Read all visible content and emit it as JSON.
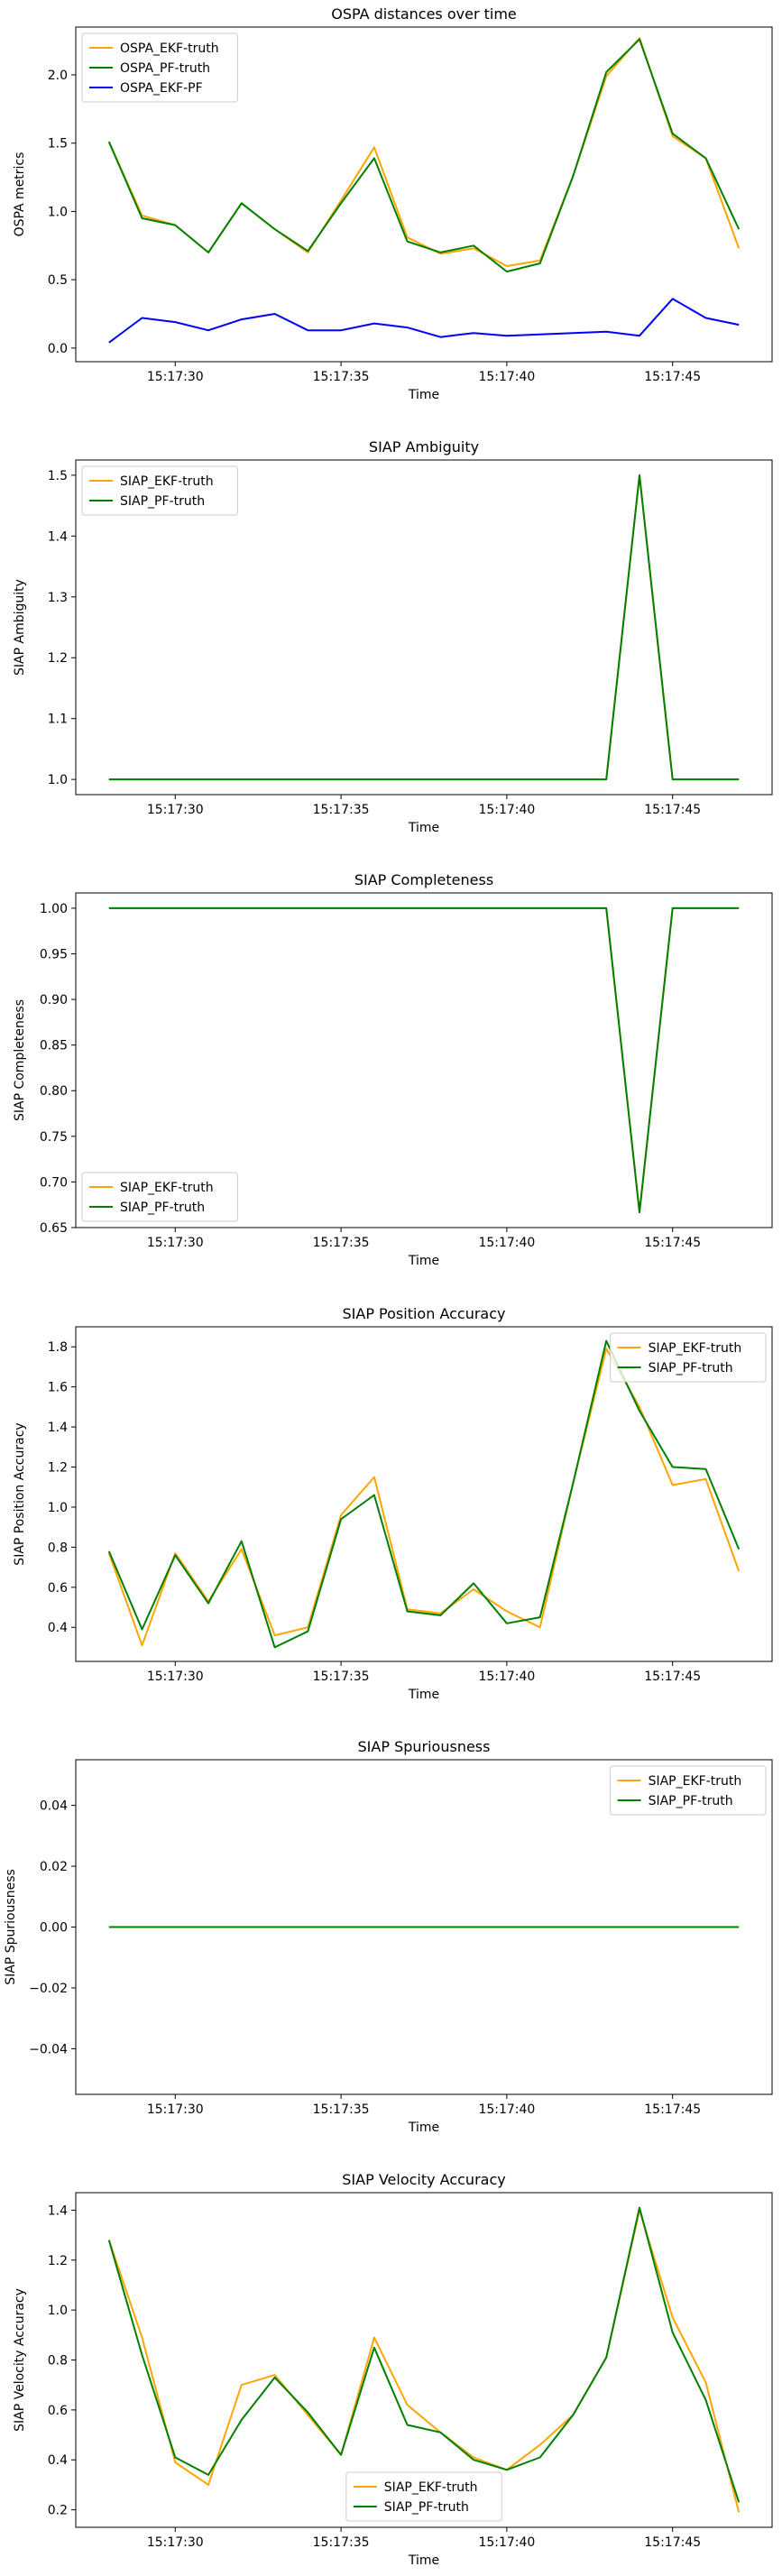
{
  "colors": {
    "orange": "#ffa500",
    "green": "#008000",
    "blue": "#0000ff"
  },
  "x_ticks": [
    "15:17:30",
    "15:17:35",
    "15:17:40",
    "15:17:45"
  ],
  "time_values": [
    "15:17:28",
    "15:17:29",
    "15:17:30",
    "15:17:31",
    "15:17:32",
    "15:17:33",
    "15:17:34",
    "15:17:35",
    "15:17:36",
    "15:17:37",
    "15:17:38",
    "15:17:39",
    "15:17:40",
    "15:17:41",
    "15:17:42",
    "15:17:43",
    "15:17:44",
    "15:17:45",
    "15:17:46",
    "15:17:47"
  ],
  "chart_data": [
    {
      "type": "line",
      "title": "OSPA distances over time",
      "xlabel": "Time",
      "ylabel": "OSPA metrics",
      "xlim": [
        "15:17:27",
        "15:17:48"
      ],
      "ylim": [
        -0.1,
        2.35
      ],
      "yticks": [
        0.0,
        0.5,
        1.0,
        1.5,
        2.0
      ],
      "ytick_labels": [
        "0.0",
        "0.5",
        "1.0",
        "1.5",
        "2.0"
      ],
      "legend_position": "upper-left",
      "grid": false,
      "series": [
        {
          "name": "OSPA_EKF-truth",
          "color": "orange",
          "values": [
            1.51,
            0.97,
            0.9,
            0.7,
            1.06,
            0.87,
            0.7,
            1.08,
            1.47,
            0.81,
            0.69,
            0.73,
            0.6,
            0.64,
            1.26,
            1.99,
            2.27,
            1.55,
            1.39,
            0.73
          ]
        },
        {
          "name": "OSPA_PF-truth",
          "color": "green",
          "values": [
            1.51,
            0.95,
            0.9,
            0.7,
            1.06,
            0.87,
            0.71,
            1.06,
            1.39,
            0.78,
            0.7,
            0.75,
            0.56,
            0.62,
            1.26,
            2.02,
            2.26,
            1.57,
            1.39,
            0.87
          ]
        },
        {
          "name": "OSPA_EKF-PF",
          "color": "blue",
          "values": [
            0.04,
            0.22,
            0.19,
            0.13,
            0.21,
            0.25,
            0.13,
            0.13,
            0.18,
            0.15,
            0.08,
            0.11,
            0.09,
            0.1,
            0.11,
            0.12,
            0.09,
            0.36,
            0.22,
            0.17
          ]
        }
      ]
    },
    {
      "type": "line",
      "title": "SIAP Ambiguity",
      "xlabel": "Time",
      "ylabel": "SIAP Ambiguity",
      "xlim": [
        "15:17:27",
        "15:17:48"
      ],
      "ylim": [
        0.975,
        1.525
      ],
      "yticks": [
        1.0,
        1.1,
        1.2,
        1.3,
        1.4,
        1.5
      ],
      "ytick_labels": [
        "1.0",
        "1.1",
        "1.2",
        "1.3",
        "1.4",
        "1.5"
      ],
      "legend_position": "upper-left",
      "grid": false,
      "series": [
        {
          "name": "SIAP_EKF-truth",
          "color": "orange",
          "values": [
            1.0,
            1.0,
            1.0,
            1.0,
            1.0,
            1.0,
            1.0,
            1.0,
            1.0,
            1.0,
            1.0,
            1.0,
            1.0,
            1.0,
            1.0,
            1.0,
            1.5,
            1.0,
            1.0,
            1.0
          ]
        },
        {
          "name": "SIAP_PF-truth",
          "color": "green",
          "values": [
            1.0,
            1.0,
            1.0,
            1.0,
            1.0,
            1.0,
            1.0,
            1.0,
            1.0,
            1.0,
            1.0,
            1.0,
            1.0,
            1.0,
            1.0,
            1.0,
            1.5,
            1.0,
            1.0,
            1.0
          ]
        }
      ]
    },
    {
      "type": "line",
      "title": "SIAP Completeness",
      "xlabel": "Time",
      "ylabel": "SIAP Completeness",
      "xlim": [
        "15:17:27",
        "15:17:48"
      ],
      "ylim": [
        0.65,
        1.0167
      ],
      "yticks": [
        0.65,
        0.7,
        0.75,
        0.8,
        0.85,
        0.9,
        0.95,
        1.0
      ],
      "ytick_labels": [
        "0.65",
        "0.70",
        "0.75",
        "0.80",
        "0.85",
        "0.90",
        "0.95",
        "1.00"
      ],
      "legend_position": "lower-left",
      "grid": false,
      "series": [
        {
          "name": "SIAP_EKF-truth",
          "color": "orange",
          "values": [
            1.0,
            1.0,
            1.0,
            1.0,
            1.0,
            1.0,
            1.0,
            1.0,
            1.0,
            1.0,
            1.0,
            1.0,
            1.0,
            1.0,
            1.0,
            1.0,
            0.6667,
            1.0,
            1.0,
            1.0
          ]
        },
        {
          "name": "SIAP_PF-truth",
          "color": "green",
          "values": [
            1.0,
            1.0,
            1.0,
            1.0,
            1.0,
            1.0,
            1.0,
            1.0,
            1.0,
            1.0,
            1.0,
            1.0,
            1.0,
            1.0,
            1.0,
            1.0,
            0.6667,
            1.0,
            1.0,
            1.0
          ]
        }
      ]
    },
    {
      "type": "line",
      "title": "SIAP Position Accuracy",
      "xlabel": "Time",
      "ylabel": "SIAP Position Accuracy",
      "xlim": [
        "15:17:27",
        "15:17:48"
      ],
      "ylim": [
        0.23,
        1.9
      ],
      "yticks": [
        0.4,
        0.6,
        0.8,
        1.0,
        1.2,
        1.4,
        1.6,
        1.8
      ],
      "ytick_labels": [
        "0.4",
        "0.6",
        "0.8",
        "1.0",
        "1.2",
        "1.4",
        "1.6",
        "1.8"
      ],
      "legend_position": "upper-right",
      "grid": false,
      "series": [
        {
          "name": "SIAP_EKF-truth",
          "color": "orange",
          "values": [
            0.77,
            0.31,
            0.77,
            0.53,
            0.79,
            0.36,
            0.4,
            0.96,
            1.15,
            0.49,
            0.47,
            0.59,
            0.48,
            0.4,
            1.12,
            1.79,
            1.5,
            1.11,
            1.14,
            0.68
          ]
        },
        {
          "name": "SIAP_PF-truth",
          "color": "green",
          "values": [
            0.78,
            0.39,
            0.76,
            0.52,
            0.83,
            0.3,
            0.38,
            0.94,
            1.06,
            0.48,
            0.46,
            0.62,
            0.42,
            0.45,
            1.12,
            1.83,
            1.48,
            1.2,
            1.19,
            0.79
          ]
        }
      ]
    },
    {
      "type": "line",
      "title": "SIAP Spuriousness",
      "xlabel": "Time",
      "ylabel": "SIAP Spuriousness",
      "xlim": [
        "15:17:27",
        "15:17:48"
      ],
      "ylim": [
        -0.055,
        0.055
      ],
      "yticks": [
        -0.04,
        -0.02,
        0.0,
        0.02,
        0.04
      ],
      "ytick_labels": [
        "−0.04",
        "−0.02",
        "0.00",
        "0.02",
        "0.04"
      ],
      "legend_position": "upper-right",
      "grid": false,
      "series": [
        {
          "name": "SIAP_EKF-truth",
          "color": "orange",
          "values": [
            0,
            0,
            0,
            0,
            0,
            0,
            0,
            0,
            0,
            0,
            0,
            0,
            0,
            0,
            0,
            0,
            0,
            0,
            0,
            0
          ]
        },
        {
          "name": "SIAP_PF-truth",
          "color": "green",
          "values": [
            0,
            0,
            0,
            0,
            0,
            0,
            0,
            0,
            0,
            0,
            0,
            0,
            0,
            0,
            0,
            0,
            0,
            0,
            0,
            0
          ]
        }
      ]
    },
    {
      "type": "line",
      "title": "SIAP Velocity Accuracy",
      "xlabel": "Time",
      "ylabel": "SIAP Velocity Accuracy",
      "xlim": [
        "15:17:27",
        "15:17:48"
      ],
      "ylim": [
        0.13,
        1.47
      ],
      "yticks": [
        0.2,
        0.4,
        0.6,
        0.8,
        1.0,
        1.2,
        1.4
      ],
      "ytick_labels": [
        "0.2",
        "0.4",
        "0.6",
        "0.8",
        "1.0",
        "1.2",
        "1.4"
      ],
      "legend_position": "lower-center",
      "grid": false,
      "series": [
        {
          "name": "SIAP_EKF-truth",
          "color": "orange",
          "values": [
            1.28,
            0.89,
            0.39,
            0.3,
            0.7,
            0.74,
            0.58,
            0.42,
            0.89,
            0.62,
            0.51,
            0.41,
            0.36,
            0.46,
            0.58,
            0.81,
            1.4,
            0.97,
            0.71,
            0.19
          ]
        },
        {
          "name": "SIAP_PF-truth",
          "color": "green",
          "values": [
            1.28,
            0.82,
            0.41,
            0.34,
            0.56,
            0.73,
            0.59,
            0.42,
            0.85,
            0.54,
            0.51,
            0.4,
            0.36,
            0.41,
            0.58,
            0.81,
            1.41,
            0.91,
            0.64,
            0.23
          ]
        }
      ]
    }
  ]
}
